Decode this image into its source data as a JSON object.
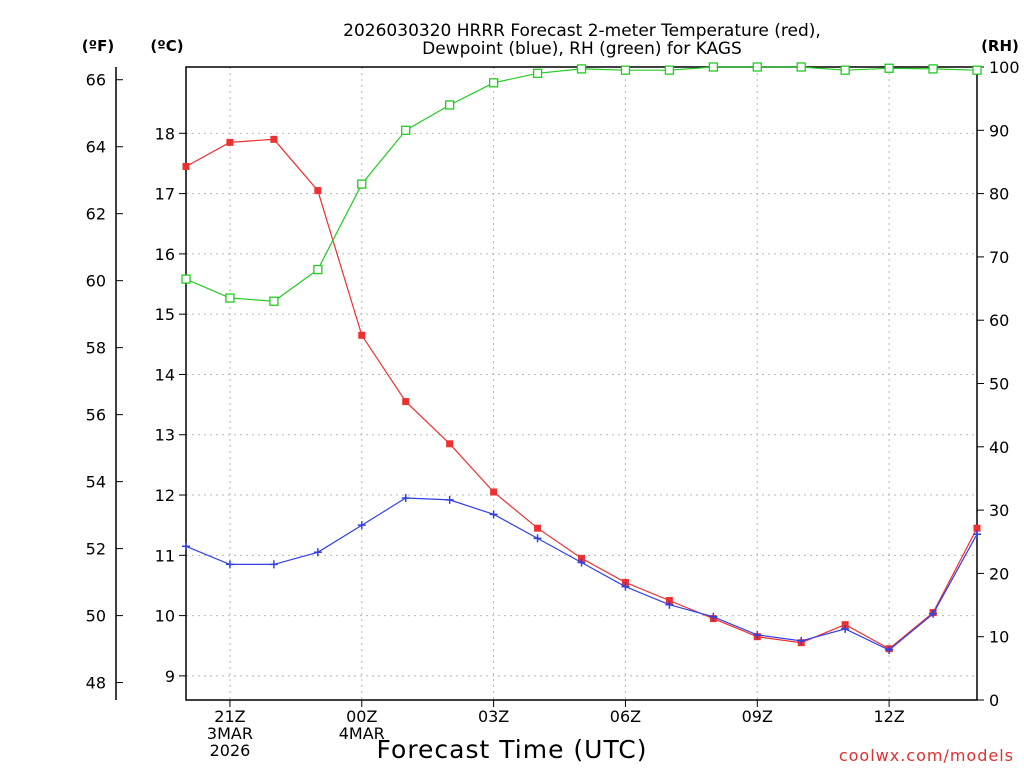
{
  "chart_data": {
    "type": "line",
    "title_line1": "2026030320 HRRR Forecast 2-meter Temperature (red),",
    "title_line2": "Dewpoint (blue), RH (green) for KAGS",
    "xlabel": "Forecast Time (UTC)",
    "credit": "coolwx.com/models",
    "unit_labels": {
      "fahrenheit": "(ºF)",
      "celsius": "(ºC)",
      "rh": "(RH)"
    },
    "x_forecast_hours": [
      20,
      21,
      22,
      23,
      0,
      1,
      2,
      3,
      4,
      5,
      6,
      7,
      8,
      9,
      10,
      11,
      12,
      13,
      14
    ],
    "xlim": [
      20,
      38
    ],
    "x_ticks": [
      {
        "x": 21,
        "lines": [
          "21Z",
          "3MAR",
          "2026"
        ]
      },
      {
        "x": 24,
        "lines": [
          "00Z",
          "4MAR"
        ]
      },
      {
        "x": 27,
        "lines": [
          "03Z"
        ]
      },
      {
        "x": 30,
        "lines": [
          "06Z"
        ]
      },
      {
        "x": 33,
        "lines": [
          "09Z"
        ]
      },
      {
        "x": 36,
        "lines": [
          "12Z"
        ]
      }
    ],
    "ylim_celsius": [
      8.6,
      19.1
    ],
    "y_ticks_celsius": [
      "9",
      "10",
      "11",
      "12",
      "13",
      "14",
      "15",
      "16",
      "17",
      "18"
    ],
    "y_ticks_fahrenheit": [
      "48",
      "50",
      "52",
      "54",
      "56",
      "58",
      "60",
      "62",
      "64",
      "66"
    ],
    "ylim_rh": [
      0,
      100
    ],
    "y_ticks_rh": [
      "0",
      "10",
      "20",
      "30",
      "40",
      "50",
      "60",
      "70",
      "80",
      "90",
      "100"
    ],
    "series": [
      {
        "name": "Temperature",
        "axis": "celsius",
        "color": "#ee3030",
        "marker": "filled-square",
        "values": [
          17.45,
          17.85,
          17.9,
          17.05,
          14.65,
          13.55,
          12.85,
          12.05,
          11.45,
          10.95,
          10.55,
          10.25,
          9.95,
          9.65,
          9.55,
          9.85,
          9.45,
          10.05,
          11.45
        ]
      },
      {
        "name": "Dewpoint",
        "axis": "celsius",
        "color": "#3040e8",
        "marker": "plus",
        "values": [
          11.15,
          10.85,
          10.85,
          11.05,
          11.5,
          11.95,
          11.92,
          11.68,
          11.28,
          10.88,
          10.48,
          10.18,
          9.98,
          9.68,
          9.58,
          9.78,
          9.43,
          10.03,
          11.35
        ]
      },
      {
        "name": "RH",
        "axis": "rh",
        "color": "#20cc20",
        "marker": "open-square",
        "values": [
          66.5,
          63.5,
          63,
          68,
          81.5,
          90,
          94,
          97.5,
          99,
          99.7,
          99.5,
          99.5,
          100,
          100,
          100,
          99.5,
          99.8,
          99.7,
          99.5
        ]
      }
    ]
  }
}
